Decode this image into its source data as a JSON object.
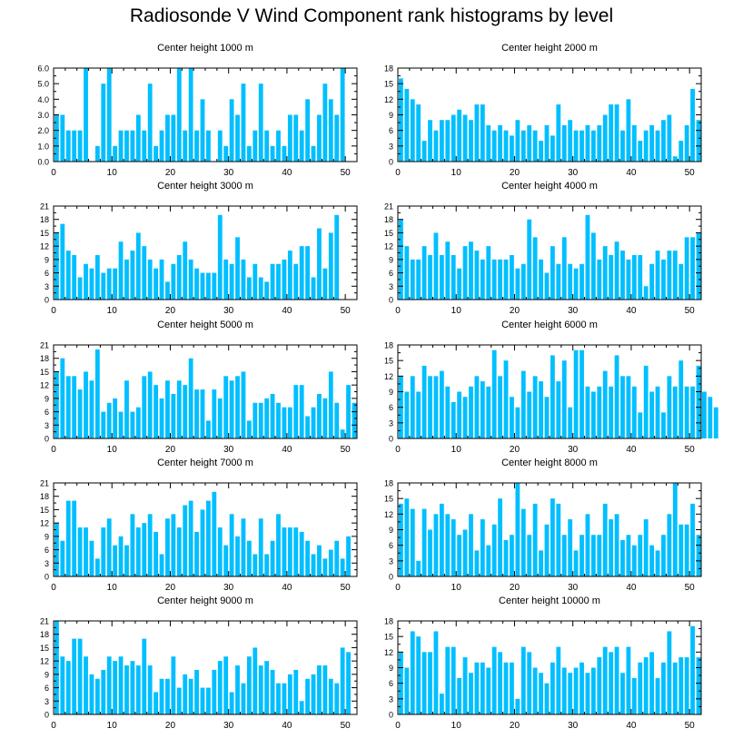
{
  "title": "Radiosonde V Wind Component rank histograms by level",
  "bar_color": "#00bfff",
  "chart_data": [
    {
      "type": "bar",
      "title": "Center height 1000 m",
      "ylim": [
        0,
        6
      ],
      "yticks": [
        "0.0",
        "1.0",
        "2.0",
        "3.0",
        "4.0",
        "5.0",
        "6.0"
      ],
      "xticks": [
        "0",
        "10",
        "20",
        "30",
        "40",
        "50"
      ],
      "values": [
        3,
        3,
        2,
        2,
        2,
        6,
        0,
        1,
        5,
        6,
        1,
        2,
        2,
        2,
        3,
        2,
        5,
        1,
        2,
        3,
        3,
        6,
        2,
        6,
        2,
        4,
        2,
        0,
        2,
        1,
        4,
        3,
        5,
        1,
        2,
        5,
        2,
        1,
        2,
        1,
        3,
        3,
        2,
        4,
        1,
        3,
        5,
        4,
        3,
        6
      ]
    },
    {
      "type": "bar",
      "title": "Center height 2000 m",
      "ylim": [
        0,
        18
      ],
      "yticks": [
        "0",
        "3",
        "6",
        "9",
        "12",
        "15",
        "18"
      ],
      "xticks": [
        "0",
        "10",
        "20",
        "30",
        "40",
        "50"
      ],
      "values": [
        16,
        14,
        12,
        11,
        4,
        8,
        6,
        8,
        8,
        9,
        10,
        9,
        8,
        11,
        11,
        7,
        6,
        7,
        6,
        5,
        8,
        6,
        7,
        6,
        4,
        7,
        5,
        11,
        7,
        8,
        6,
        6,
        7,
        6,
        7,
        9,
        11,
        11,
        6,
        12,
        7,
        4,
        6,
        7,
        6,
        8,
        9,
        1,
        4,
        7,
        14,
        8
      ]
    },
    {
      "type": "bar",
      "title": "Center height 3000 m",
      "ylim": [
        0,
        21
      ],
      "yticks": [
        "0",
        "3",
        "6",
        "9",
        "12",
        "15",
        "18",
        "21"
      ],
      "xticks": [
        "0",
        "10",
        "20",
        "30",
        "40",
        "50"
      ],
      "values": [
        15,
        17,
        11,
        10,
        5,
        8,
        7,
        10,
        6,
        7,
        7,
        13,
        9,
        11,
        15,
        12,
        9,
        7,
        9,
        4,
        8,
        10,
        13,
        9,
        7,
        6,
        6,
        6,
        19,
        9,
        8,
        14,
        9,
        5,
        8,
        5,
        4,
        8,
        8,
        9,
        11,
        8,
        12,
        12,
        5,
        16,
        7,
        15,
        19
      ]
    },
    {
      "type": "bar",
      "title": "Center height 4000 m",
      "ylim": [
        0,
        21
      ],
      "yticks": [
        "0",
        "3",
        "6",
        "9",
        "12",
        "15",
        "18",
        "21"
      ],
      "xticks": [
        "0",
        "10",
        "20",
        "30",
        "40",
        "50"
      ],
      "values": [
        18,
        12,
        9,
        9,
        12,
        10,
        15,
        10,
        13,
        10,
        7,
        12,
        13,
        11,
        9,
        12,
        9,
        9,
        9,
        10,
        7,
        8,
        18,
        14,
        9,
        6,
        12,
        8,
        14,
        8,
        7,
        8,
        19,
        15,
        9,
        12,
        10,
        13,
        11,
        9,
        10,
        10,
        3,
        8,
        11,
        9,
        11,
        11,
        8,
        14,
        14,
        15
      ]
    },
    {
      "type": "bar",
      "title": "Center height 5000 m",
      "ylim": [
        0,
        21
      ],
      "yticks": [
        "0",
        "3",
        "6",
        "9",
        "12",
        "15",
        "18",
        "21"
      ],
      "xticks": [
        "0",
        "10",
        "20",
        "30",
        "40",
        "50"
      ],
      "values": [
        15,
        18,
        14,
        14,
        11,
        15,
        13,
        20,
        6,
        8,
        9,
        6,
        13,
        6,
        7,
        14,
        15,
        12,
        9,
        13,
        10,
        13,
        12,
        18,
        11,
        11,
        4,
        11,
        9,
        14,
        13,
        14,
        15,
        4,
        8,
        8,
        9,
        10,
        8,
        7,
        7,
        12,
        12,
        5,
        7,
        10,
        9,
        15,
        8,
        2,
        12,
        8
      ]
    },
    {
      "type": "bar",
      "title": "Center height 6000 m",
      "ylim": [
        0,
        18
      ],
      "yticks": [
        "0",
        "3",
        "6",
        "9",
        "12",
        "15",
        "18"
      ],
      "xticks": [
        "0",
        "10",
        "20",
        "30",
        "40",
        "50"
      ],
      "values": [
        12,
        9,
        12,
        9,
        14,
        12,
        12,
        13,
        10,
        7,
        9,
        8,
        10,
        12,
        11,
        10,
        17,
        12,
        15,
        8,
        6,
        13,
        9,
        12,
        11,
        8,
        16,
        11,
        15,
        6,
        17,
        17,
        10,
        9,
        10,
        13,
        10,
        16,
        12,
        12,
        10,
        5,
        14,
        9,
        10,
        5,
        12,
        10,
        15,
        10,
        10,
        14,
        9,
        8,
        6
      ]
    },
    {
      "type": "bar",
      "title": "Center height 7000 m",
      "ylim": [
        0,
        21
      ],
      "yticks": [
        "0",
        "3",
        "6",
        "9",
        "12",
        "15",
        "18",
        "21"
      ],
      "xticks": [
        "0",
        "10",
        "20",
        "30",
        "40",
        "50"
      ],
      "values": [
        12,
        8,
        17,
        17,
        11,
        11,
        8,
        4,
        11,
        13,
        7,
        9,
        7,
        14,
        11,
        12,
        14,
        10,
        5,
        13,
        14,
        11,
        16,
        17,
        10,
        15,
        17,
        19,
        11,
        7,
        14,
        9,
        13,
        8,
        5,
        13,
        5,
        8,
        14,
        11,
        11,
        11,
        10,
        8,
        5,
        7,
        4,
        6,
        8,
        4,
        9
      ]
    },
    {
      "type": "bar",
      "title": "Center height 8000 m",
      "ylim": [
        0,
        18
      ],
      "yticks": [
        "0",
        "3",
        "6",
        "9",
        "12",
        "15",
        "18"
      ],
      "xticks": [
        "0",
        "10",
        "20",
        "30",
        "40",
        "50"
      ],
      "values": [
        14,
        15,
        13,
        3,
        13,
        9,
        12,
        14,
        12,
        11,
        8,
        9,
        12,
        5,
        11,
        6,
        10,
        15,
        7,
        8,
        18,
        13,
        8,
        14,
        5,
        10,
        15,
        14,
        8,
        11,
        5,
        8,
        12,
        8,
        8,
        14,
        11,
        12,
        7,
        8,
        6,
        8,
        11,
        6,
        5,
        8,
        12,
        18,
        10,
        10,
        14,
        8
      ]
    },
    {
      "type": "bar",
      "title": "Center height 9000 m",
      "ylim": [
        0,
        21
      ],
      "yticks": [
        "0",
        "3",
        "6",
        "9",
        "12",
        "15",
        "18",
        "21"
      ],
      "xticks": [
        "0",
        "10",
        "20",
        "30",
        "40",
        "50"
      ],
      "values": [
        21,
        13,
        12,
        17,
        17,
        13,
        9,
        8,
        10,
        13,
        12,
        13,
        11,
        12,
        11,
        17,
        11,
        5,
        8,
        8,
        13,
        6,
        9,
        8,
        10,
        6,
        6,
        10,
        12,
        13,
        5,
        11,
        7,
        13,
        15,
        11,
        12,
        10,
        7,
        7,
        9,
        10,
        3,
        8,
        9,
        11,
        11,
        8,
        7,
        15,
        14
      ]
    },
    {
      "type": "bar",
      "title": "Center height 10000 m",
      "ylim": [
        0,
        18
      ],
      "yticks": [
        "0",
        "3",
        "6",
        "9",
        "12",
        "15",
        "18"
      ],
      "xticks": [
        "0",
        "10",
        "20",
        "30",
        "40",
        "50"
      ],
      "values": [
        12,
        9,
        16,
        15,
        12,
        12,
        16,
        4,
        13,
        13,
        7,
        11,
        8,
        10,
        10,
        9,
        13,
        12,
        10,
        10,
        3,
        13,
        12,
        9,
        8,
        6,
        10,
        13,
        9,
        8,
        9,
        10,
        8,
        9,
        11,
        13,
        12,
        13,
        8,
        13,
        7,
        10,
        11,
        12,
        7,
        10,
        16,
        10,
        11,
        11,
        17,
        11
      ]
    }
  ]
}
